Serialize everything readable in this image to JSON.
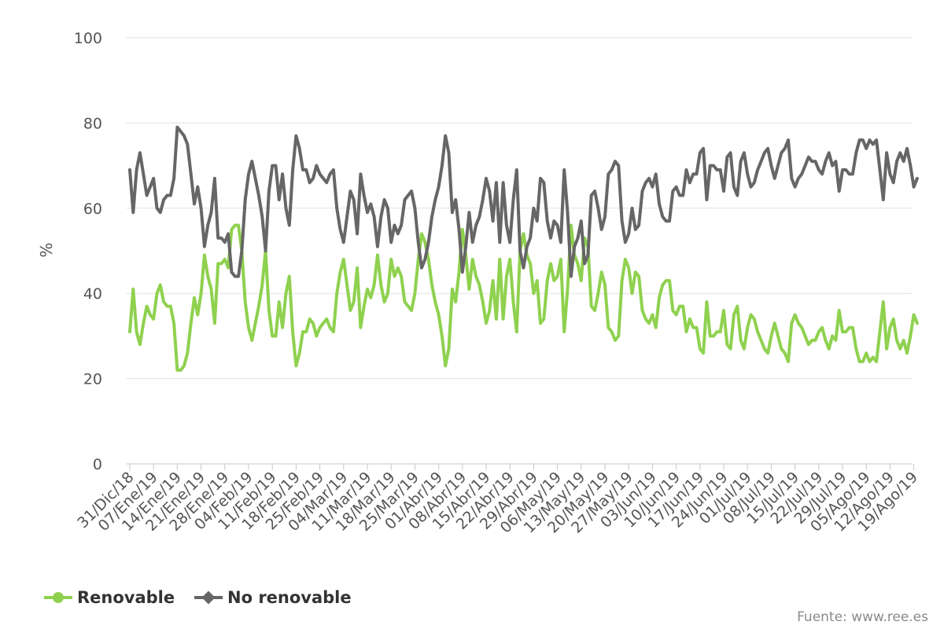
{
  "chart_data": {
    "type": "line",
    "ylabel": "%",
    "ylim": [
      0,
      100
    ],
    "yticks": [
      0,
      20,
      40,
      60,
      80,
      100
    ],
    "grid": "horizontal",
    "legend_position": "bottom-left",
    "source": "Fuente: www.ree.es",
    "x_start": "2018-12-31",
    "x_tick_step_days": 7,
    "x_tick_labels": [
      "31/Dic/18",
      "07/Ene/19",
      "14/Ene/19",
      "21/Ene/19",
      "28/Ene/19",
      "04/Feb/19",
      "11/Feb/19",
      "18/Feb/19",
      "25/Feb/19",
      "04/Mar/19",
      "11/Mar/19",
      "18/Mar/19",
      "25/Mar/19",
      "01/Abr/19",
      "08/Abr/19",
      "15/Abr/19",
      "22/Abr/19",
      "29/Abr/19",
      "06/May/19",
      "13/May/19",
      "20/May/19",
      "27/May/19",
      "03/Jun/19",
      "10/Jun/19",
      "17/Jun/19",
      "24/Jun/19",
      "01/Jul/19",
      "08/Jul/19",
      "15/Jul/19",
      "22/Jul/19",
      "29/Jul/19",
      "05/Ago/19",
      "12/Ago/19",
      "19/Ago/19"
    ],
    "series": [
      {
        "name": "Renovable",
        "color": "#8fd14f",
        "values": [
          31,
          41,
          31,
          28,
          33,
          37,
          35,
          34,
          40,
          42,
          38,
          37,
          37,
          33,
          22,
          22,
          23,
          26,
          33,
          39,
          35,
          40,
          49,
          44,
          41,
          33,
          47,
          47,
          48,
          46,
          55,
          56,
          56,
          50,
          38,
          32,
          29,
          33,
          37,
          42,
          50,
          36,
          30,
          30,
          38,
          32,
          40,
          44,
          31,
          23,
          26,
          31,
          31,
          34,
          33,
          30,
          32,
          33,
          34,
          32,
          31,
          40,
          45,
          48,
          42,
          36,
          38,
          46,
          32,
          37,
          41,
          39,
          42,
          49,
          42,
          38,
          40,
          48,
          44,
          46,
          44,
          38,
          37,
          36,
          40,
          48,
          54,
          52,
          48,
          42,
          38,
          35,
          30,
          23,
          27,
          41,
          38,
          45,
          55,
          49,
          41,
          48,
          44,
          42,
          38,
          33,
          36,
          43,
          34,
          48,
          34,
          44,
          48,
          38,
          31,
          50,
          54,
          49,
          47,
          40,
          43,
          33,
          34,
          43,
          47,
          43,
          44,
          48,
          31,
          41,
          56,
          49,
          47,
          43,
          53,
          51,
          37,
          36,
          40,
          45,
          42,
          32,
          31,
          29,
          30,
          43,
          48,
          46,
          40,
          45,
          44,
          36,
          34,
          33,
          35,
          32,
          39,
          42,
          43,
          43,
          36,
          35,
          37,
          37,
          31,
          34,
          32,
          32,
          27,
          26,
          38,
          30,
          30,
          31,
          31,
          36,
          28,
          27,
          35,
          37,
          29,
          27,
          32,
          35,
          34,
          31,
          29,
          27,
          26,
          30,
          33,
          30,
          27,
          26,
          24,
          33,
          35,
          33,
          32,
          30,
          28,
          29,
          29,
          31,
          32,
          29,
          27,
          30,
          29,
          36,
          31,
          31,
          32,
          32,
          27,
          24,
          24,
          26,
          24,
          25,
          24,
          31,
          38,
          27,
          32,
          34,
          29,
          27,
          29,
          26,
          30,
          35,
          33
        ],
        "line_width": 4
      },
      {
        "name": "No renovable",
        "color": "#666666",
        "values": [
          69,
          59,
          69,
          73,
          68,
          63,
          65,
          67,
          60,
          59,
          62,
          63,
          63,
          67,
          79,
          78,
          77,
          75,
          68,
          61,
          65,
          60,
          51,
          56,
          59,
          67,
          53,
          53,
          52,
          54,
          45,
          44,
          44,
          50,
          62,
          68,
          71,
          67,
          63,
          58,
          50,
          64,
          70,
          70,
          62,
          68,
          60,
          56,
          69,
          77,
          74,
          69,
          69,
          66,
          67,
          70,
          68,
          67,
          66,
          68,
          69,
          60,
          55,
          52,
          58,
          64,
          62,
          54,
          68,
          63,
          59,
          61,
          58,
          51,
          58,
          62,
          60,
          52,
          56,
          54,
          56,
          62,
          63,
          64,
          60,
          52,
          46,
          48,
          52,
          58,
          62,
          65,
          70,
          77,
          73,
          59,
          62,
          55,
          45,
          51,
          59,
          52,
          56,
          58,
          62,
          67,
          64,
          57,
          66,
          52,
          66,
          56,
          52,
          62,
          69,
          50,
          46,
          51,
          53,
          60,
          57,
          67,
          66,
          57,
          53,
          57,
          56,
          52,
          69,
          59,
          44,
          51,
          53,
          57,
          47,
          49,
          63,
          64,
          60,
          55,
          58,
          68,
          69,
          71,
          70,
          57,
          52,
          54,
          60,
          55,
          56,
          64,
          66,
          67,
          65,
          68,
          61,
          58,
          57,
          57,
          64,
          65,
          63,
          63,
          69,
          66,
          68,
          68,
          73,
          74,
          62,
          70,
          70,
          69,
          69,
          64,
          72,
          73,
          65,
          63,
          71,
          73,
          68,
          65,
          66,
          69,
          71,
          73,
          74,
          70,
          67,
          70,
          73,
          74,
          76,
          67,
          65,
          67,
          68,
          70,
          72,
          71,
          71,
          69,
          68,
          71,
          73,
          70,
          71,
          64,
          69,
          69,
          68,
          68,
          73,
          76,
          76,
          74,
          76,
          75,
          76,
          69,
          62,
          73,
          68,
          66,
          71,
          73,
          71,
          74,
          70,
          65,
          67
        ],
        "line_width": 4
      }
    ]
  }
}
